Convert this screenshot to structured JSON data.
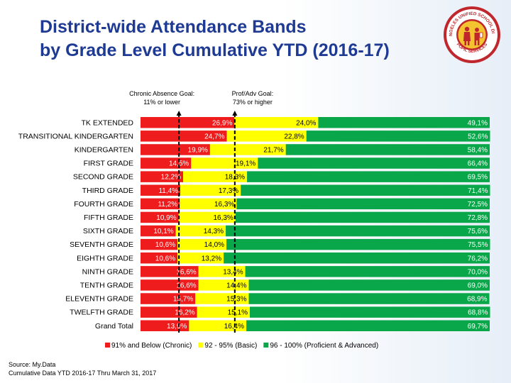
{
  "title_line1": "District-wide Attendance Bands",
  "title_line2": "by Grade Level Cumulative YTD (2016-17)",
  "logo": {
    "text_top": "LOS ANGELES UNIFIED SCHOOL DISTRICT",
    "text_bottom": "PUPIL SERVICES",
    "icon": "school-children-logo"
  },
  "source_line1": "Source: My.Data",
  "source_line2": "Cumulative Data YTD 2016-17 Thru March 31, 2017",
  "colors": {
    "red": "#ee1c1c",
    "yellow": "#ffff00",
    "green": "#0aa74a",
    "title": "#1f3a93"
  },
  "chart_data": {
    "type": "bar",
    "orientation": "horizontal",
    "stacked": true,
    "normalized": true,
    "xlim": [
      0,
      100
    ],
    "goal_lines": [
      {
        "label_line1": "Chronic Absence Goal:",
        "label_line2": "11% or lower",
        "value": 11
      },
      {
        "label_line1": "Prof/Adv Goal:",
        "label_line2": "73% or higher",
        "value": 27
      }
    ],
    "categories": [
      "TK EXTENDED",
      "TRANSITIONAL KINDERGARTEN",
      "KINDERGARTEN",
      "FIRST GRADE",
      "SECOND GRADE",
      "THIRD GRADE",
      "FOURTH GRADE",
      "FIFTH GRADE",
      "SIXTH GRADE",
      "SEVENTH GRADE",
      "EIGHTH GRADE",
      "NINTH GRADE",
      "TENTH GRADE",
      "ELEVENTH GRADE",
      "TWELFTH GRADE",
      "Grand Total"
    ],
    "series": [
      {
        "name": "91% and Below (Chronic)",
        "color": "#ee1c1c",
        "values": [
          26.9,
          24.7,
          19.9,
          14.5,
          12.2,
          11.4,
          11.2,
          10.9,
          10.1,
          10.6,
          10.6,
          16.6,
          16.6,
          15.7,
          16.2,
          13.9
        ],
        "labels": [
          "26,9%",
          "24,7%",
          "19,9%",
          "14,5%",
          "12,2%",
          "11,4%",
          "11,2%",
          "10,9%",
          "10,1%",
          "10,6%",
          "10,6%",
          "16,6%",
          "16,6%",
          "15,7%",
          "16,2%",
          "13,9%"
        ]
      },
      {
        "name": "92 - 95% (Basic)",
        "color": "#ffff00",
        "values": [
          24.0,
          22.8,
          21.7,
          19.1,
          18.3,
          17.3,
          16.3,
          16.3,
          14.3,
          14.0,
          13.2,
          13.4,
          14.4,
          15.3,
          15.1,
          16.4
        ],
        "labels": [
          "24,0%",
          "22,8%",
          "21,7%",
          "19,1%",
          "18,3%",
          "17,3%",
          "16,3%",
          "16,3%",
          "14,3%",
          "14,0%",
          "13,2%",
          "13,4%",
          "14,4%",
          "15,3%",
          "15,1%",
          "16,4%"
        ]
      },
      {
        "name": "96 - 100% (Proficient & Advanced)",
        "color": "#0aa74a",
        "values": [
          49.1,
          52.6,
          58.4,
          66.4,
          69.5,
          71.4,
          72.5,
          72.8,
          75.6,
          75.5,
          76.2,
          70.0,
          69.0,
          68.9,
          68.8,
          69.7
        ],
        "labels": [
          "49,1%",
          "52,6%",
          "58,4%",
          "66,4%",
          "69,5%",
          "71,4%",
          "72,5%",
          "72,8%",
          "75,6%",
          "75,5%",
          "76,2%",
          "70,0%",
          "69,0%",
          "68,9%",
          "68,8%",
          "69,7%"
        ]
      }
    ]
  }
}
